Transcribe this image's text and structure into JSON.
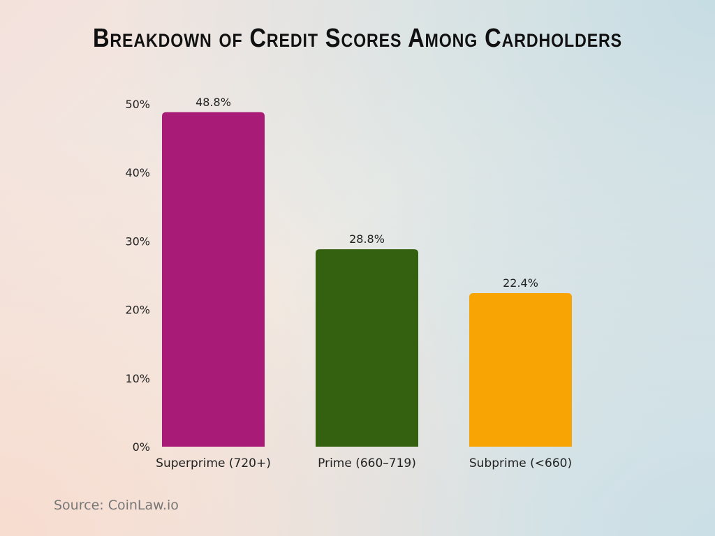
{
  "chart_data": {
    "type": "bar",
    "title": "Breakdown of Credit Scores Among Cardholders",
    "categories": [
      "Superprime (720+)",
      "Prime (660–719)",
      "Subprime (<660)"
    ],
    "values": [
      48.8,
      28.8,
      22.4
    ],
    "data_labels": [
      "48.8%",
      "28.8%",
      "22.4%"
    ],
    "colors": [
      "#a81c78",
      "#336110",
      "#f9a405"
    ],
    "ylim": [
      0,
      50
    ],
    "yticks": [
      "0%",
      "10%",
      "20%",
      "30%",
      "40%",
      "50%"
    ],
    "xlabel": "",
    "ylabel": "",
    "grid": false,
    "legend": "none"
  },
  "source": "Source: CoinLaw.io"
}
